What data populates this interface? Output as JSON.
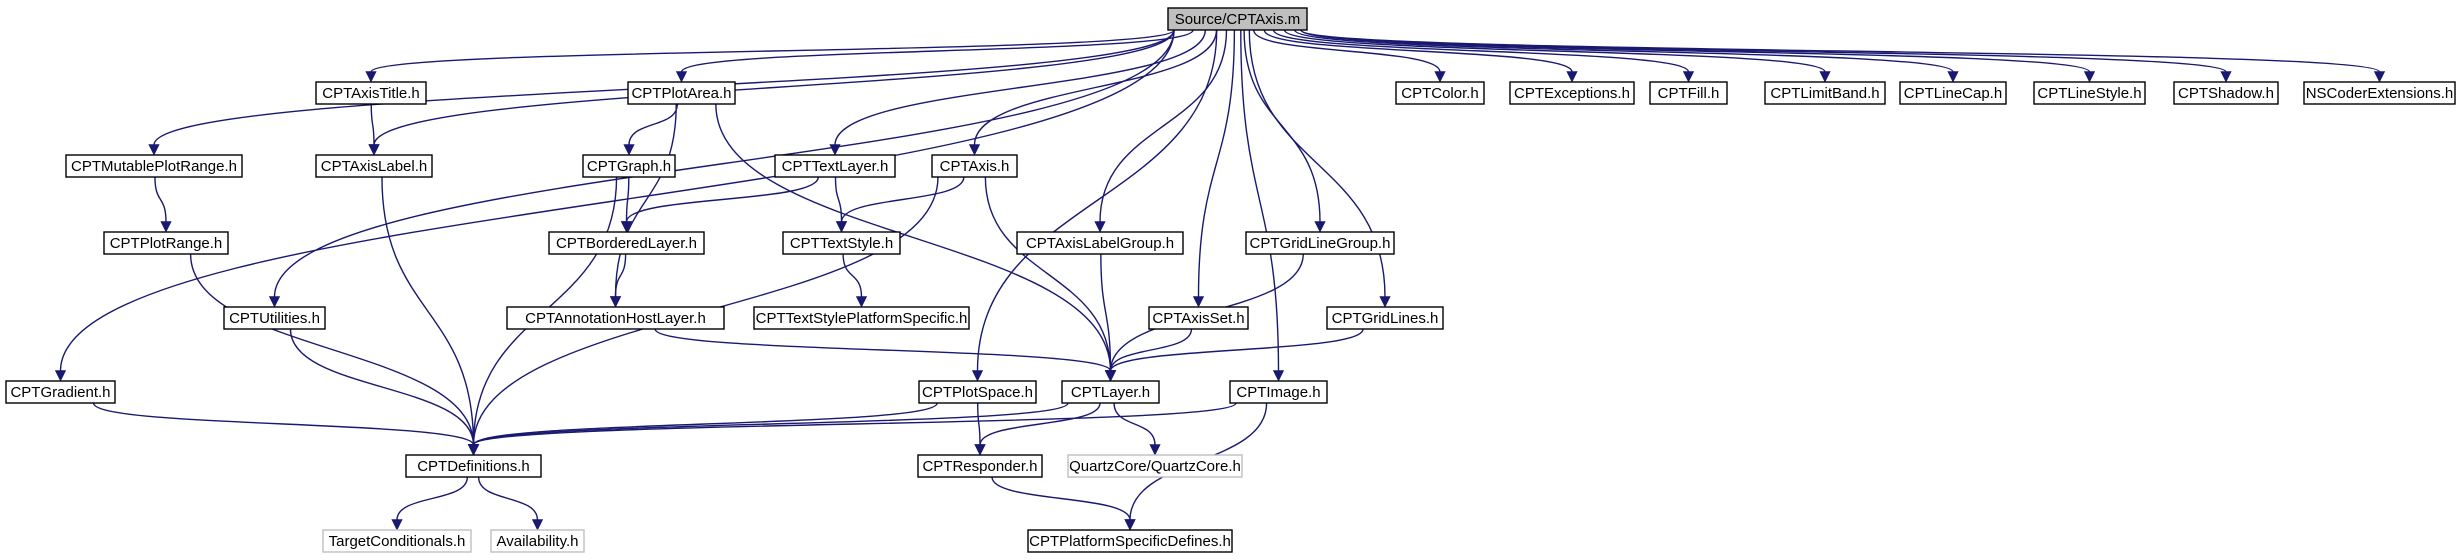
{
  "colors": {
    "edge": "#191970",
    "node_border": "#000000",
    "node_border_unresolved": "#bfbfbf",
    "root_fill": "#bfbfbf",
    "node_fill": "#ffffff"
  },
  "nodes": [
    {
      "id": "root",
      "label": "Source/CPTAxis.m",
      "kind": "root"
    },
    {
      "id": "CPTAxisTitle",
      "label": "CPTAxisTitle.h",
      "kind": "normal"
    },
    {
      "id": "CPTPlotArea",
      "label": "CPTPlotArea.h",
      "kind": "normal"
    },
    {
      "id": "CPTColor",
      "label": "CPTColor.h",
      "kind": "normal"
    },
    {
      "id": "CPTExceptions",
      "label": "CPTExceptions.h",
      "kind": "normal"
    },
    {
      "id": "CPTFill",
      "label": "CPTFill.h",
      "kind": "normal"
    },
    {
      "id": "CPTLimitBand",
      "label": "CPTLimitBand.h",
      "kind": "normal"
    },
    {
      "id": "CPTLineCap",
      "label": "CPTLineCap.h",
      "kind": "normal"
    },
    {
      "id": "CPTLineStyle",
      "label": "CPTLineStyle.h",
      "kind": "normal"
    },
    {
      "id": "CPTShadow",
      "label": "CPTShadow.h",
      "kind": "normal"
    },
    {
      "id": "NSCoderExtensions",
      "label": "NSCoderExtensions.h",
      "kind": "normal"
    },
    {
      "id": "CPTMutablePlotRange",
      "label": "CPTMutablePlotRange.h",
      "kind": "normal"
    },
    {
      "id": "CPTAxisLabel",
      "label": "CPTAxisLabel.h",
      "kind": "normal"
    },
    {
      "id": "CPTGraph",
      "label": "CPTGraph.h",
      "kind": "normal"
    },
    {
      "id": "CPTTextLayer",
      "label": "CPTTextLayer.h",
      "kind": "normal"
    },
    {
      "id": "CPTAxis",
      "label": "CPTAxis.h",
      "kind": "normal"
    },
    {
      "id": "CPTPlotRange",
      "label": "CPTPlotRange.h",
      "kind": "normal"
    },
    {
      "id": "CPTBorderedLayer",
      "label": "CPTBorderedLayer.h",
      "kind": "normal"
    },
    {
      "id": "CPTTextStyle",
      "label": "CPTTextStyle.h",
      "kind": "normal"
    },
    {
      "id": "CPTAxisLabelGroup",
      "label": "CPTAxisLabelGroup.h",
      "kind": "normal"
    },
    {
      "id": "CPTGridLineGroup",
      "label": "CPTGridLineGroup.h",
      "kind": "normal"
    },
    {
      "id": "CPTUtilities",
      "label": "CPTUtilities.h",
      "kind": "normal"
    },
    {
      "id": "CPTAnnotationHostLayer",
      "label": "CPTAnnotationHostLayer.h",
      "kind": "normal"
    },
    {
      "id": "CPTTextStylePlatformSpecific",
      "label": "CPTTextStylePlatformSpecific.h",
      "kind": "normal"
    },
    {
      "id": "CPTAxisSet",
      "label": "CPTAxisSet.h",
      "kind": "normal"
    },
    {
      "id": "CPTGridLines",
      "label": "CPTGridLines.h",
      "kind": "normal"
    },
    {
      "id": "CPTGradient",
      "label": "CPTGradient.h",
      "kind": "normal"
    },
    {
      "id": "CPTPlotSpace",
      "label": "CPTPlotSpace.h",
      "kind": "normal"
    },
    {
      "id": "CPTLayer",
      "label": "CPTLayer.h",
      "kind": "normal"
    },
    {
      "id": "CPTImage",
      "label": "CPTImage.h",
      "kind": "normal"
    },
    {
      "id": "CPTDefinitions",
      "label": "CPTDefinitions.h",
      "kind": "normal"
    },
    {
      "id": "CPTResponder",
      "label": "CPTResponder.h",
      "kind": "normal"
    },
    {
      "id": "QuartzCore",
      "label": "QuartzCore/QuartzCore.h",
      "kind": "unresolved"
    },
    {
      "id": "TargetConditionals",
      "label": "TargetConditionals.h",
      "kind": "unresolved"
    },
    {
      "id": "Availability",
      "label": "Availability.h",
      "kind": "unresolved"
    },
    {
      "id": "CPTPlatformSpecificDefines",
      "label": "CPTPlatformSpecificDefines.h",
      "kind": "normal"
    }
  ],
  "edges": [
    [
      "root",
      "CPTAxisTitle"
    ],
    [
      "root",
      "CPTPlotArea"
    ],
    [
      "root",
      "CPTColor"
    ],
    [
      "root",
      "CPTExceptions"
    ],
    [
      "root",
      "CPTFill"
    ],
    [
      "root",
      "CPTLimitBand"
    ],
    [
      "root",
      "CPTLineCap"
    ],
    [
      "root",
      "CPTLineStyle"
    ],
    [
      "root",
      "CPTShadow"
    ],
    [
      "root",
      "NSCoderExtensions"
    ],
    [
      "root",
      "CPTMutablePlotRange"
    ],
    [
      "root",
      "CPTAxisLabel"
    ],
    [
      "root",
      "CPTTextLayer"
    ],
    [
      "root",
      "CPTAxis"
    ],
    [
      "root",
      "CPTAxisLabelGroup"
    ],
    [
      "root",
      "CPTGridLineGroup"
    ],
    [
      "root",
      "CPTUtilities"
    ],
    [
      "root",
      "CPTAxisSet"
    ],
    [
      "root",
      "CPTGridLines"
    ],
    [
      "root",
      "CPTGradient"
    ],
    [
      "root",
      "CPTPlotSpace"
    ],
    [
      "root",
      "CPTImage"
    ],
    [
      "CPTAxisTitle",
      "CPTAxisLabel"
    ],
    [
      "CPTPlotArea",
      "CPTGraph"
    ],
    [
      "CPTPlotArea",
      "CPTAnnotationHostLayer"
    ],
    [
      "CPTPlotArea",
      "CPTLayer"
    ],
    [
      "CPTMutablePlotRange",
      "CPTPlotRange"
    ],
    [
      "CPTAxisLabel",
      "CPTDefinitions"
    ],
    [
      "CPTGraph",
      "CPTBorderedLayer"
    ],
    [
      "CPTGraph",
      "CPTDefinitions"
    ],
    [
      "CPTTextLayer",
      "CPTBorderedLayer"
    ],
    [
      "CPTTextLayer",
      "CPTTextStyle"
    ],
    [
      "CPTAxis",
      "CPTTextStyle"
    ],
    [
      "CPTAxis",
      "CPTLayer"
    ],
    [
      "CPTAxis",
      "CPTDefinitions"
    ],
    [
      "CPTPlotRange",
      "CPTDefinitions"
    ],
    [
      "CPTBorderedLayer",
      "CPTAnnotationHostLayer"
    ],
    [
      "CPTTextStyle",
      "CPTTextStylePlatformSpecific"
    ],
    [
      "CPTAxisLabelGroup",
      "CPTLayer"
    ],
    [
      "CPTGridLineGroup",
      "CPTLayer"
    ],
    [
      "CPTUtilities",
      "CPTDefinitions"
    ],
    [
      "CPTAnnotationHostLayer",
      "CPTLayer"
    ],
    [
      "CPTAxisSet",
      "CPTLayer"
    ],
    [
      "CPTGridLines",
      "CPTLayer"
    ],
    [
      "CPTGradient",
      "CPTDefinitions"
    ],
    [
      "CPTPlotSpace",
      "CPTDefinitions"
    ],
    [
      "CPTPlotSpace",
      "CPTResponder"
    ],
    [
      "CPTLayer",
      "CPTDefinitions"
    ],
    [
      "CPTLayer",
      "CPTResponder"
    ],
    [
      "CPTLayer",
      "QuartzCore"
    ],
    [
      "CPTImage",
      "CPTDefinitions"
    ],
    [
      "CPTImage",
      "CPTPlatformSpecificDefines"
    ],
    [
      "CPTDefinitions",
      "TargetConditionals"
    ],
    [
      "CPTDefinitions",
      "Availability"
    ],
    [
      "CPTResponder",
      "CPTPlatformSpecificDefines"
    ]
  ]
}
